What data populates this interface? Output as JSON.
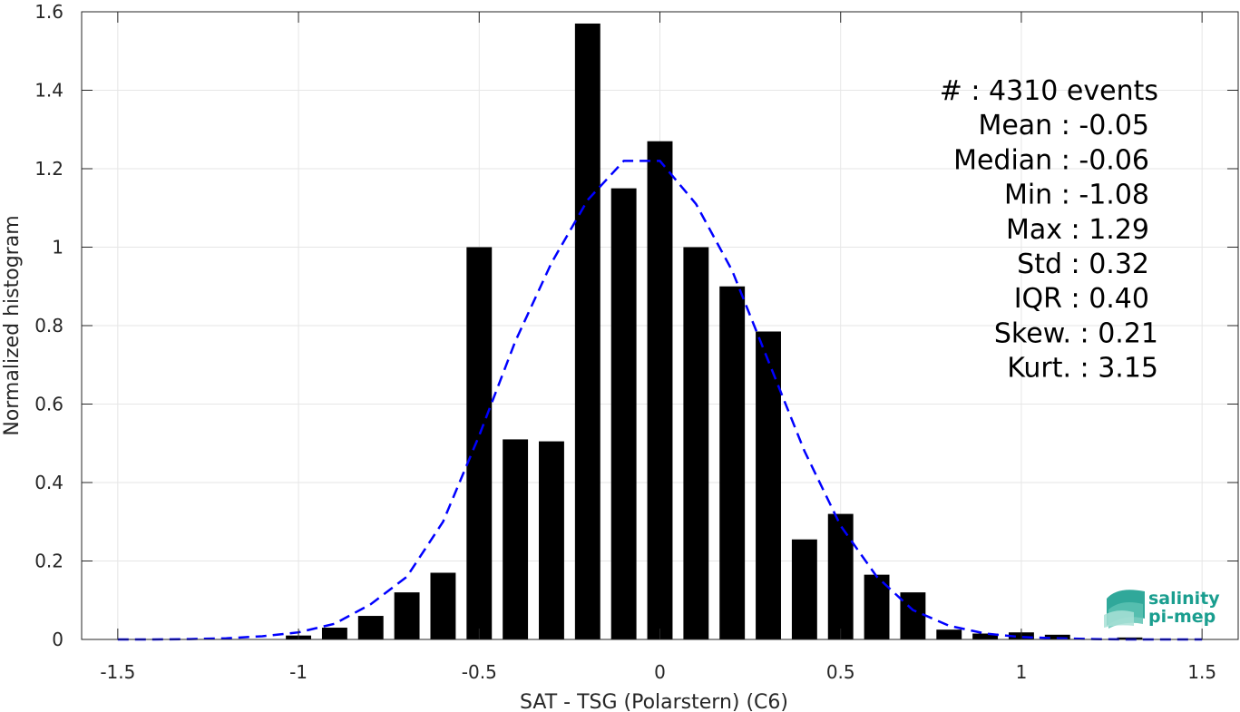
{
  "chart_data": {
    "type": "bar",
    "xlabel": "SAT - TSG (Polarstern) (C6)",
    "ylabel": "Normalized histogram",
    "xlim": [
      -1.6,
      1.6
    ],
    "ylim": [
      0,
      1.6
    ],
    "xticks": [
      -1.5,
      -1,
      -0.5,
      0,
      0.5,
      1,
      1.5
    ],
    "xtick_labels": [
      "-1.5",
      "-1",
      "-0.5",
      "0",
      "0.5",
      "1",
      "1.5"
    ],
    "yticks": [
      0,
      0.2,
      0.4,
      0.6,
      0.8,
      1,
      1.2,
      1.4,
      1.6
    ],
    "ytick_labels": [
      "0",
      "0.2",
      "0.4",
      "0.6",
      "0.8",
      "1",
      "1.2",
      "1.4",
      "1.6"
    ],
    "grid": true,
    "bin_width": 0.1,
    "bar_width": 0.07,
    "bars": {
      "x": [
        -1.0,
        -0.9,
        -0.8,
        -0.7,
        -0.6,
        -0.5,
        -0.4,
        -0.3,
        -0.2,
        -0.1,
        0.0,
        0.1,
        0.2,
        0.3,
        0.4,
        0.5,
        0.6,
        0.7,
        0.8,
        0.9,
        1.0,
        1.1,
        1.3
      ],
      "values": [
        0.01,
        0.03,
        0.06,
        0.12,
        0.17,
        1.0,
        0.51,
        0.505,
        1.57,
        1.15,
        1.27,
        1.0,
        0.9,
        0.785,
        0.255,
        0.32,
        0.165,
        0.12,
        0.025,
        0.015,
        0.018,
        0.012,
        0.005
      ],
      "color": "#000000"
    },
    "fit_curve": {
      "style": "dashed",
      "color": "#0000ff",
      "x": [
        -1.5,
        -1.4,
        -1.3,
        -1.2,
        -1.1,
        -1.0,
        -0.9,
        -0.8,
        -0.7,
        -0.6,
        -0.5,
        -0.4,
        -0.3,
        -0.2,
        -0.1,
        0.0,
        0.1,
        0.2,
        0.3,
        0.4,
        0.5,
        0.6,
        0.7,
        0.8,
        0.9,
        1.0,
        1.1,
        1.2,
        1.3,
        1.4,
        1.5
      ],
      "y": [
        0.0,
        0.0,
        0.001,
        0.003,
        0.008,
        0.018,
        0.04,
        0.09,
        0.16,
        0.3,
        0.52,
        0.76,
        0.96,
        1.12,
        1.22,
        1.22,
        1.11,
        0.94,
        0.71,
        0.48,
        0.29,
        0.16,
        0.075,
        0.035,
        0.015,
        0.006,
        0.003,
        0.001,
        0.0,
        0.0,
        0.0
      ]
    },
    "stats_lines": [
      "#  : 4310 events",
      "Mean : -0.05",
      "Median : -0.06",
      "Min : -1.08",
      "Max : 1.29",
      "Std : 0.32",
      "IQR : 0.40",
      "Skew. : 0.21",
      "Kurt. : 3.15"
    ]
  },
  "logo": {
    "line1": "salinity",
    "line2": "pi-mep",
    "color": "#1a9e8f"
  }
}
